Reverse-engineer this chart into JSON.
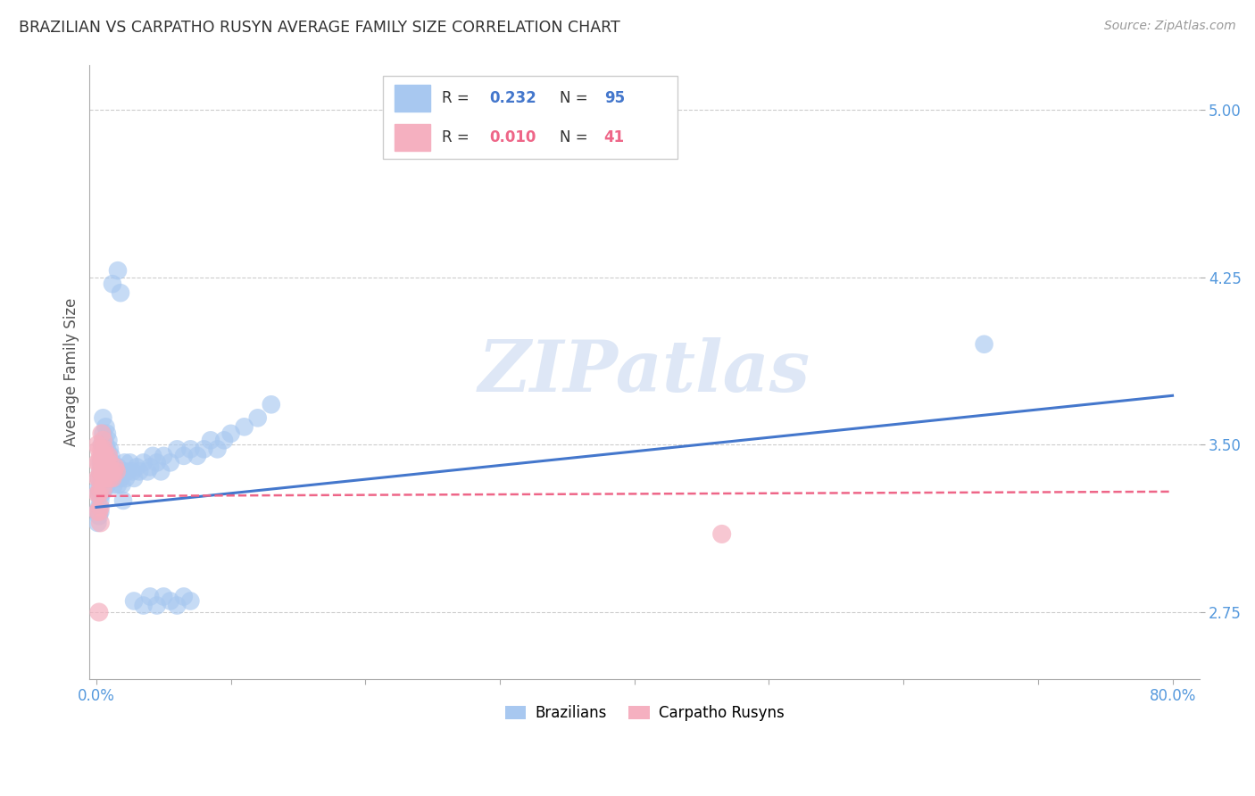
{
  "title": "BRAZILIAN VS CARPATHO RUSYN AVERAGE FAMILY SIZE CORRELATION CHART",
  "source": "Source: ZipAtlas.com",
  "ylabel": "Average Family Size",
  "yticks": [
    2.75,
    3.5,
    4.25,
    5.0
  ],
  "ytick_labels": [
    "2.75",
    "3.50",
    "4.25",
    "5.00"
  ],
  "xlim": [
    -0.005,
    0.82
  ],
  "ylim": [
    2.45,
    5.2
  ],
  "legend_blue_R": "0.232",
  "legend_blue_N": "95",
  "legend_pink_R": "0.010",
  "legend_pink_N": "41",
  "legend_blue_label": "Brazilians",
  "legend_pink_label": "Carpatho Rusyns",
  "blue_color": "#a8c8f0",
  "pink_color": "#f5b0c0",
  "blue_line_color": "#4477cc",
  "pink_line_color": "#ee6688",
  "axis_tick_color": "#5599dd",
  "grid_color": "#cccccc",
  "watermark_text": "ZIPatlas",
  "watermark_color": "#c8d8f0",
  "blue_trend_x0": 0.0,
  "blue_trend_x1": 0.8,
  "blue_trend_y0": 3.22,
  "blue_trend_y1": 3.72,
  "pink_trend_x0": 0.0,
  "pink_trend_x1": 0.8,
  "pink_trend_y0": 3.27,
  "pink_trend_y1": 3.29,
  "blue_x": [
    0.001,
    0.001,
    0.001,
    0.002,
    0.002,
    0.002,
    0.002,
    0.003,
    0.003,
    0.003,
    0.003,
    0.003,
    0.004,
    0.004,
    0.004,
    0.004,
    0.005,
    0.005,
    0.005,
    0.005,
    0.005,
    0.006,
    0.006,
    0.006,
    0.006,
    0.007,
    0.007,
    0.007,
    0.007,
    0.008,
    0.008,
    0.008,
    0.008,
    0.009,
    0.009,
    0.009,
    0.01,
    0.01,
    0.01,
    0.011,
    0.011,
    0.012,
    0.012,
    0.013,
    0.013,
    0.014,
    0.015,
    0.016,
    0.016,
    0.017,
    0.018,
    0.019,
    0.02,
    0.021,
    0.022,
    0.023,
    0.025,
    0.027,
    0.028,
    0.03,
    0.032,
    0.035,
    0.038,
    0.04,
    0.042,
    0.045,
    0.048,
    0.05,
    0.055,
    0.06,
    0.065,
    0.07,
    0.075,
    0.08,
    0.085,
    0.09,
    0.095,
    0.1,
    0.11,
    0.12,
    0.13,
    0.028,
    0.035,
    0.04,
    0.045,
    0.05,
    0.055,
    0.06,
    0.065,
    0.07,
    0.012,
    0.016,
    0.018,
    0.66,
    0.02
  ],
  "blue_y": [
    3.3,
    3.2,
    3.15,
    3.35,
    3.28,
    3.18,
    3.22,
    3.42,
    3.38,
    3.25,
    3.32,
    3.2,
    3.5,
    3.45,
    3.38,
    3.28,
    3.55,
    3.48,
    3.42,
    3.35,
    3.62,
    3.52,
    3.45,
    3.38,
    3.3,
    3.58,
    3.5,
    3.42,
    3.35,
    3.55,
    3.48,
    3.4,
    3.32,
    3.52,
    3.45,
    3.38,
    3.48,
    3.42,
    3.35,
    3.45,
    3.38,
    3.42,
    3.35,
    3.4,
    3.32,
    3.38,
    3.35,
    3.4,
    3.32,
    3.38,
    3.35,
    3.32,
    3.38,
    3.42,
    3.35,
    3.38,
    3.42,
    3.38,
    3.35,
    3.4,
    3.38,
    3.42,
    3.38,
    3.4,
    3.45,
    3.42,
    3.38,
    3.45,
    3.42,
    3.48,
    3.45,
    3.48,
    3.45,
    3.48,
    3.52,
    3.48,
    3.52,
    3.55,
    3.58,
    3.62,
    3.68,
    2.8,
    2.78,
    2.82,
    2.78,
    2.82,
    2.8,
    2.78,
    2.82,
    2.8,
    4.22,
    4.28,
    4.18,
    3.95,
    3.25
  ],
  "pink_x": [
    0.001,
    0.001,
    0.001,
    0.001,
    0.001,
    0.002,
    0.002,
    0.002,
    0.002,
    0.002,
    0.002,
    0.003,
    0.003,
    0.003,
    0.003,
    0.003,
    0.004,
    0.004,
    0.004,
    0.004,
    0.005,
    0.005,
    0.005,
    0.005,
    0.006,
    0.006,
    0.006,
    0.007,
    0.007,
    0.008,
    0.008,
    0.009,
    0.009,
    0.01,
    0.01,
    0.011,
    0.012,
    0.013,
    0.014,
    0.015,
    0.465
  ],
  "pink_y": [
    3.5,
    3.42,
    3.35,
    3.28,
    3.2,
    3.48,
    3.42,
    3.35,
    3.28,
    3.2,
    2.75,
    3.45,
    3.38,
    3.3,
    3.22,
    3.15,
    3.55,
    3.48,
    3.42,
    3.35,
    3.52,
    3.45,
    3.38,
    3.3,
    3.48,
    3.42,
    3.35,
    3.45,
    3.38,
    3.42,
    3.35,
    3.45,
    3.38,
    3.42,
    3.35,
    3.38,
    3.35,
    3.38,
    3.4,
    3.38,
    3.1
  ]
}
